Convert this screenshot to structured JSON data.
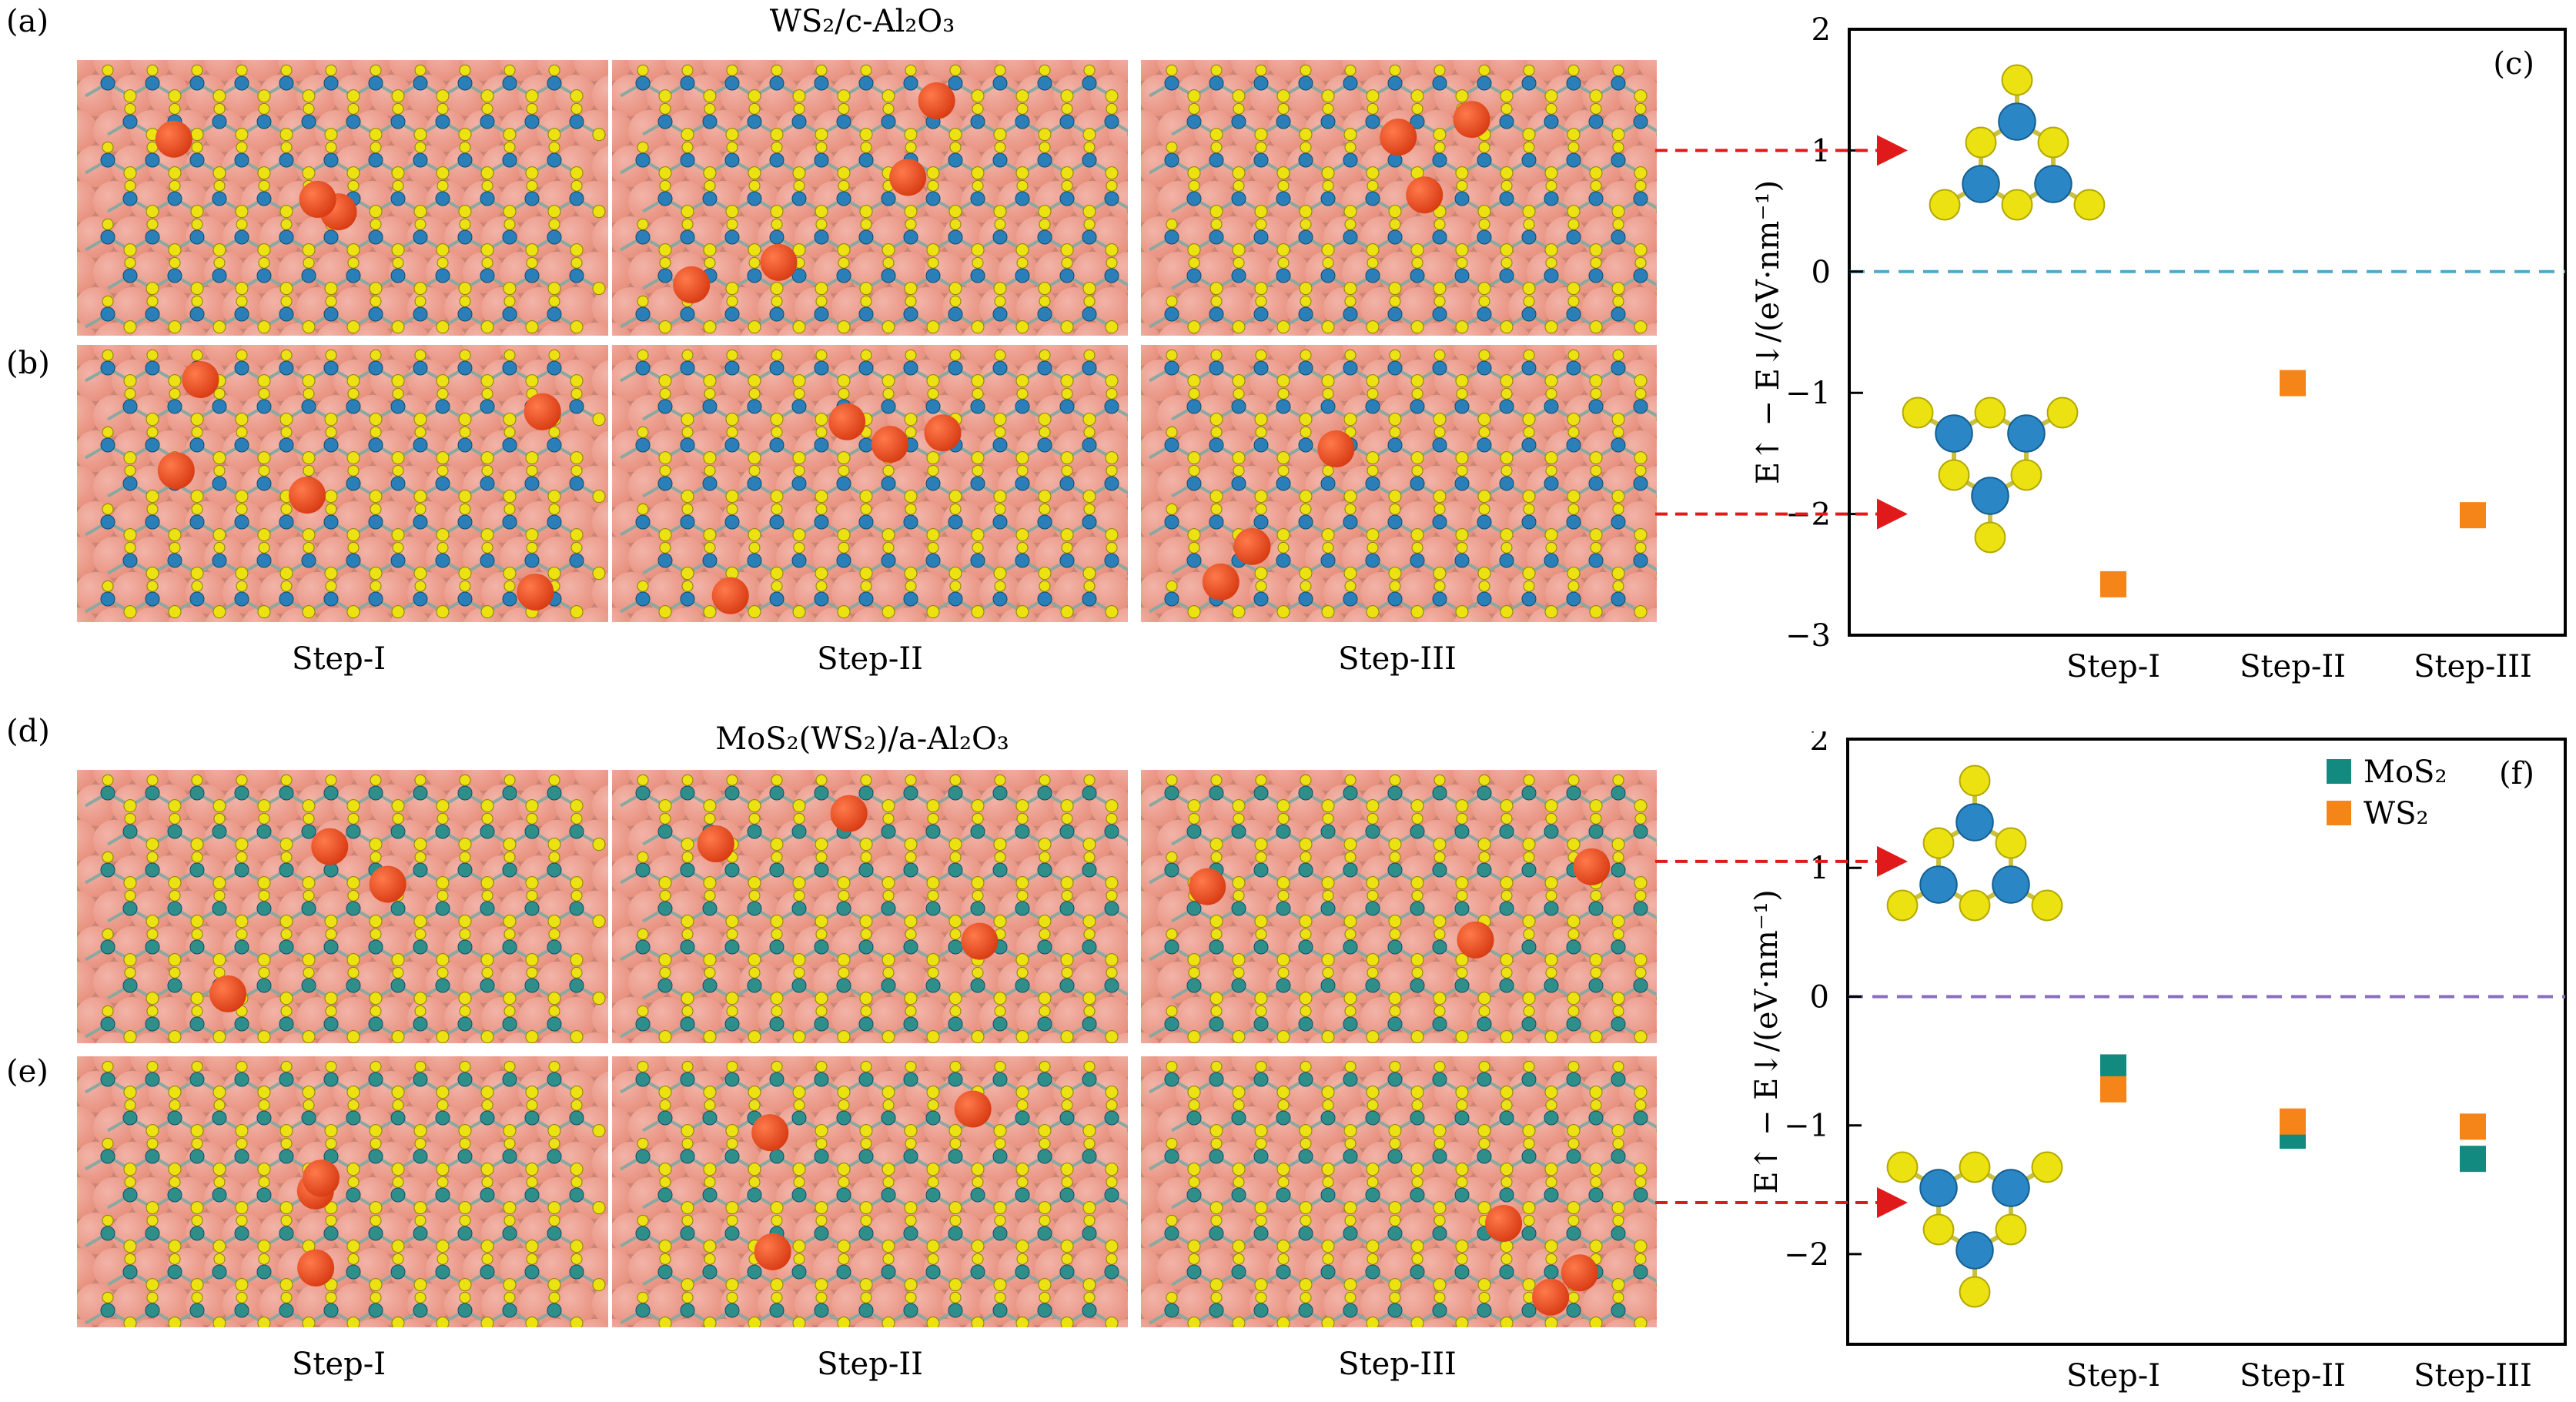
{
  "labels": {
    "a": "(a)",
    "b": "(b)",
    "c": "(c)",
    "d": "(d)",
    "e": "(e)",
    "f": "(f)"
  },
  "titles": {
    "top": "WS₂/c-Al₂O₃",
    "bottom": "MoS₂(WS₂)/a-Al₂O₃"
  },
  "steps": [
    "Step-I",
    "Step-II",
    "Step-III"
  ],
  "colors": {
    "substrate": "#e8907e",
    "substrate_light": "#f2b4a8",
    "oxygen_red": "#d83a12",
    "sulfur": "#ece212",
    "metal_blue": "#2a7fb8",
    "metal_teal": "#2e8f8a",
    "arrow_red": "#e01a1a",
    "ws2_orange": "#f58518",
    "mos2_teal": "#138a80",
    "zero_line_c": "#4fa8c8",
    "zero_line_f": "#8a6cc0"
  },
  "chart_data": [
    {
      "id": "c",
      "type": "scatter",
      "categories": [
        "Step-I",
        "Step-II",
        "Step-III"
      ],
      "ylabel": "E↑ − E↓/(eV·nm⁻¹)",
      "ylim": [
        -3,
        2
      ],
      "yticks": [
        -3,
        -2,
        -1,
        0,
        1,
        2
      ],
      "zero_line": true,
      "legend": false,
      "series": [
        {
          "values": [
            -2.58,
            -0.92,
            -2.01
          ],
          "color": "#f58518",
          "marker": "square"
        }
      ],
      "annotations": [
        {
          "text": "(c)",
          "position": "top-right"
        }
      ],
      "arrows_to_y": [
        1.0,
        -2.0
      ]
    },
    {
      "id": "f",
      "type": "scatter",
      "categories": [
        "Step-I",
        "Step-II",
        "Step-III"
      ],
      "ylabel": "E↑ − E↓/(eV·nm⁻¹)",
      "ylim": [
        -2.7,
        2
      ],
      "yticks": [
        -2,
        -1,
        0,
        1,
        2
      ],
      "zero_line": true,
      "legend": "top-right",
      "series": [
        {
          "name": "MoS₂",
          "values": [
            -0.55,
            -1.08,
            -1.26
          ],
          "color": "#138a80",
          "marker": "square"
        },
        {
          "name": "WS₂",
          "values": [
            -0.72,
            -0.97,
            -1.01
          ],
          "color": "#f58518",
          "marker": "square"
        }
      ],
      "annotations": [
        {
          "text": "(f)",
          "position": "top-right"
        }
      ],
      "arrows_to_y": [
        1.05,
        -1.6
      ]
    }
  ]
}
